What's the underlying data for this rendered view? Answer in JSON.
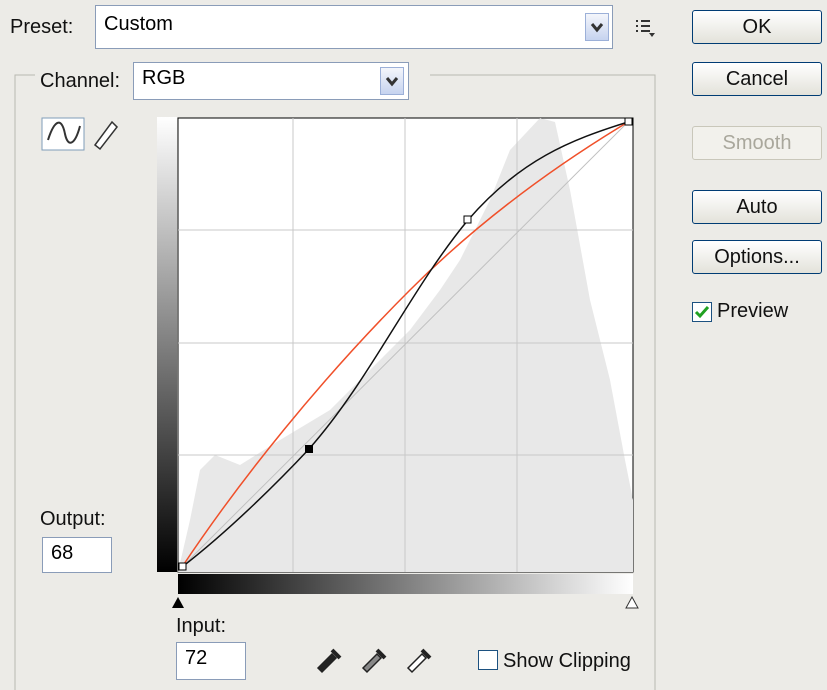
{
  "preset": {
    "label": "Preset:",
    "value": "Custom"
  },
  "channel": {
    "label": "Channel:",
    "value": "RGB"
  },
  "buttons": {
    "ok": "OK",
    "cancel": "Cancel",
    "smooth": "Smooth",
    "auto": "Auto",
    "options": "Options..."
  },
  "preview": {
    "label": "Preview"
  },
  "output": {
    "label": "Output:",
    "value": "68"
  },
  "input": {
    "label": "Input:",
    "value": "72"
  },
  "show_clipping": {
    "label": "Show Clipping"
  }
}
